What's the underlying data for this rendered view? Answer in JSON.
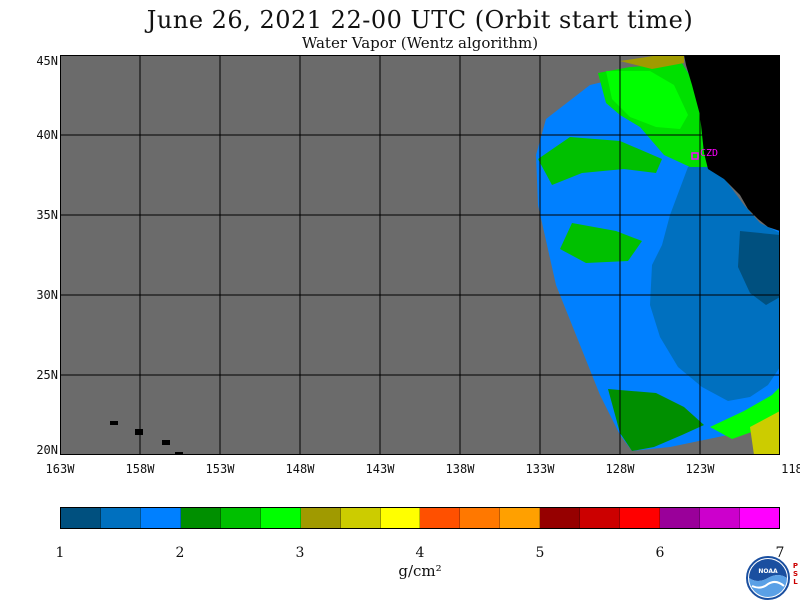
{
  "header": {
    "title": "June 26, 2021  22-00 UTC  (Orbit start time)",
    "subtitle": "Water Vapor (Wentz algorithm)"
  },
  "map": {
    "lat_labels": [
      "45N",
      "40N",
      "35N",
      "30N",
      "25N",
      "20N"
    ],
    "lon_labels": [
      "163W",
      "158W",
      "153W",
      "148W",
      "143W",
      "138W",
      "133W",
      "128W",
      "123W",
      "118W"
    ],
    "station_label": "CZD",
    "colors": {
      "no_data": "#6b6b6b",
      "land": "#000000",
      "grid": "#000000",
      "station": "#ff00ff"
    }
  },
  "colorbar": {
    "segment_colors": [
      "#00507f",
      "#0070bf",
      "#0080ff",
      "#008f00",
      "#00c000",
      "#00ff00",
      "#a09a00",
      "#cccc00",
      "#ffff00",
      "#ff5000",
      "#ff7800",
      "#ffa000",
      "#960000",
      "#cc0000",
      "#ff0000",
      "#9a009a",
      "#cc00cc",
      "#ff00ff"
    ],
    "tick_labels": [
      "1",
      "2",
      "3",
      "4",
      "5",
      "6",
      "7"
    ],
    "unit": "g/cm²"
  },
  "logos": {
    "noaa": "NOAA",
    "psl": [
      "P",
      "S",
      "L"
    ]
  }
}
